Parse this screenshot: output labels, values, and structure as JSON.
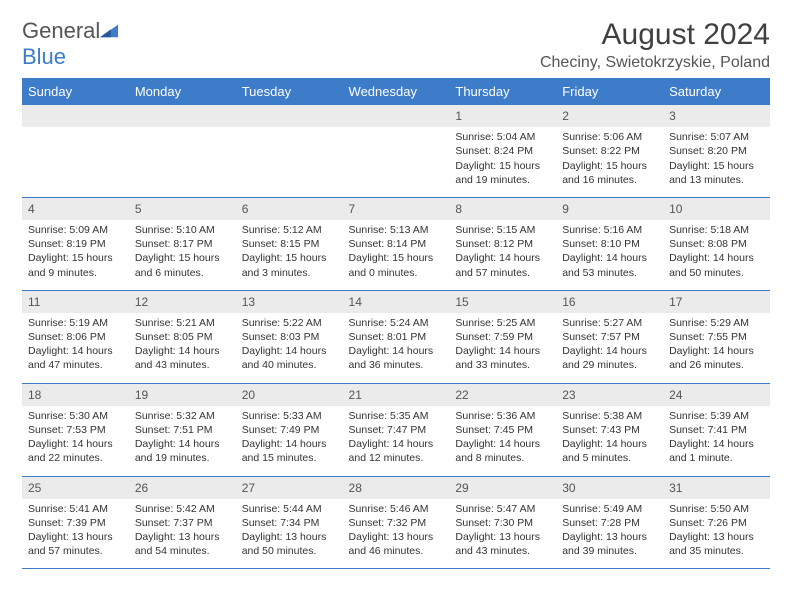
{
  "logo": {
    "word1": "General",
    "word2": "Blue"
  },
  "title": "August 2024",
  "location": "Checiny, Swietokrzyskie, Poland",
  "colors": {
    "accent": "#3d7cc9",
    "header_bg": "#3d7cc9",
    "header_text": "#ffffff",
    "daynum_bg": "#ebebeb",
    "text": "#333333",
    "background": "#ffffff"
  },
  "weekdays": [
    "Sunday",
    "Monday",
    "Tuesday",
    "Wednesday",
    "Thursday",
    "Friday",
    "Saturday"
  ],
  "weeks": [
    [
      {
        "n": "",
        "lines": []
      },
      {
        "n": "",
        "lines": []
      },
      {
        "n": "",
        "lines": []
      },
      {
        "n": "",
        "lines": []
      },
      {
        "n": "1",
        "lines": [
          "Sunrise: 5:04 AM",
          "Sunset: 8:24 PM",
          "Daylight: 15 hours and 19 minutes."
        ]
      },
      {
        "n": "2",
        "lines": [
          "Sunrise: 5:06 AM",
          "Sunset: 8:22 PM",
          "Daylight: 15 hours and 16 minutes."
        ]
      },
      {
        "n": "3",
        "lines": [
          "Sunrise: 5:07 AM",
          "Sunset: 8:20 PM",
          "Daylight: 15 hours and 13 minutes."
        ]
      }
    ],
    [
      {
        "n": "4",
        "lines": [
          "Sunrise: 5:09 AM",
          "Sunset: 8:19 PM",
          "Daylight: 15 hours and 9 minutes."
        ]
      },
      {
        "n": "5",
        "lines": [
          "Sunrise: 5:10 AM",
          "Sunset: 8:17 PM",
          "Daylight: 15 hours and 6 minutes."
        ]
      },
      {
        "n": "6",
        "lines": [
          "Sunrise: 5:12 AM",
          "Sunset: 8:15 PM",
          "Daylight: 15 hours and 3 minutes."
        ]
      },
      {
        "n": "7",
        "lines": [
          "Sunrise: 5:13 AM",
          "Sunset: 8:14 PM",
          "Daylight: 15 hours and 0 minutes."
        ]
      },
      {
        "n": "8",
        "lines": [
          "Sunrise: 5:15 AM",
          "Sunset: 8:12 PM",
          "Daylight: 14 hours and 57 minutes."
        ]
      },
      {
        "n": "9",
        "lines": [
          "Sunrise: 5:16 AM",
          "Sunset: 8:10 PM",
          "Daylight: 14 hours and 53 minutes."
        ]
      },
      {
        "n": "10",
        "lines": [
          "Sunrise: 5:18 AM",
          "Sunset: 8:08 PM",
          "Daylight: 14 hours and 50 minutes."
        ]
      }
    ],
    [
      {
        "n": "11",
        "lines": [
          "Sunrise: 5:19 AM",
          "Sunset: 8:06 PM",
          "Daylight: 14 hours and 47 minutes."
        ]
      },
      {
        "n": "12",
        "lines": [
          "Sunrise: 5:21 AM",
          "Sunset: 8:05 PM",
          "Daylight: 14 hours and 43 minutes."
        ]
      },
      {
        "n": "13",
        "lines": [
          "Sunrise: 5:22 AM",
          "Sunset: 8:03 PM",
          "Daylight: 14 hours and 40 minutes."
        ]
      },
      {
        "n": "14",
        "lines": [
          "Sunrise: 5:24 AM",
          "Sunset: 8:01 PM",
          "Daylight: 14 hours and 36 minutes."
        ]
      },
      {
        "n": "15",
        "lines": [
          "Sunrise: 5:25 AM",
          "Sunset: 7:59 PM",
          "Daylight: 14 hours and 33 minutes."
        ]
      },
      {
        "n": "16",
        "lines": [
          "Sunrise: 5:27 AM",
          "Sunset: 7:57 PM",
          "Daylight: 14 hours and 29 minutes."
        ]
      },
      {
        "n": "17",
        "lines": [
          "Sunrise: 5:29 AM",
          "Sunset: 7:55 PM",
          "Daylight: 14 hours and 26 minutes."
        ]
      }
    ],
    [
      {
        "n": "18",
        "lines": [
          "Sunrise: 5:30 AM",
          "Sunset: 7:53 PM",
          "Daylight: 14 hours and 22 minutes."
        ]
      },
      {
        "n": "19",
        "lines": [
          "Sunrise: 5:32 AM",
          "Sunset: 7:51 PM",
          "Daylight: 14 hours and 19 minutes."
        ]
      },
      {
        "n": "20",
        "lines": [
          "Sunrise: 5:33 AM",
          "Sunset: 7:49 PM",
          "Daylight: 14 hours and 15 minutes."
        ]
      },
      {
        "n": "21",
        "lines": [
          "Sunrise: 5:35 AM",
          "Sunset: 7:47 PM",
          "Daylight: 14 hours and 12 minutes."
        ]
      },
      {
        "n": "22",
        "lines": [
          "Sunrise: 5:36 AM",
          "Sunset: 7:45 PM",
          "Daylight: 14 hours and 8 minutes."
        ]
      },
      {
        "n": "23",
        "lines": [
          "Sunrise: 5:38 AM",
          "Sunset: 7:43 PM",
          "Daylight: 14 hours and 5 minutes."
        ]
      },
      {
        "n": "24",
        "lines": [
          "Sunrise: 5:39 AM",
          "Sunset: 7:41 PM",
          "Daylight: 14 hours and 1 minute."
        ]
      }
    ],
    [
      {
        "n": "25",
        "lines": [
          "Sunrise: 5:41 AM",
          "Sunset: 7:39 PM",
          "Daylight: 13 hours and 57 minutes."
        ]
      },
      {
        "n": "26",
        "lines": [
          "Sunrise: 5:42 AM",
          "Sunset: 7:37 PM",
          "Daylight: 13 hours and 54 minutes."
        ]
      },
      {
        "n": "27",
        "lines": [
          "Sunrise: 5:44 AM",
          "Sunset: 7:34 PM",
          "Daylight: 13 hours and 50 minutes."
        ]
      },
      {
        "n": "28",
        "lines": [
          "Sunrise: 5:46 AM",
          "Sunset: 7:32 PM",
          "Daylight: 13 hours and 46 minutes."
        ]
      },
      {
        "n": "29",
        "lines": [
          "Sunrise: 5:47 AM",
          "Sunset: 7:30 PM",
          "Daylight: 13 hours and 43 minutes."
        ]
      },
      {
        "n": "30",
        "lines": [
          "Sunrise: 5:49 AM",
          "Sunset: 7:28 PM",
          "Daylight: 13 hours and 39 minutes."
        ]
      },
      {
        "n": "31",
        "lines": [
          "Sunrise: 5:50 AM",
          "Sunset: 7:26 PM",
          "Daylight: 13 hours and 35 minutes."
        ]
      }
    ]
  ]
}
